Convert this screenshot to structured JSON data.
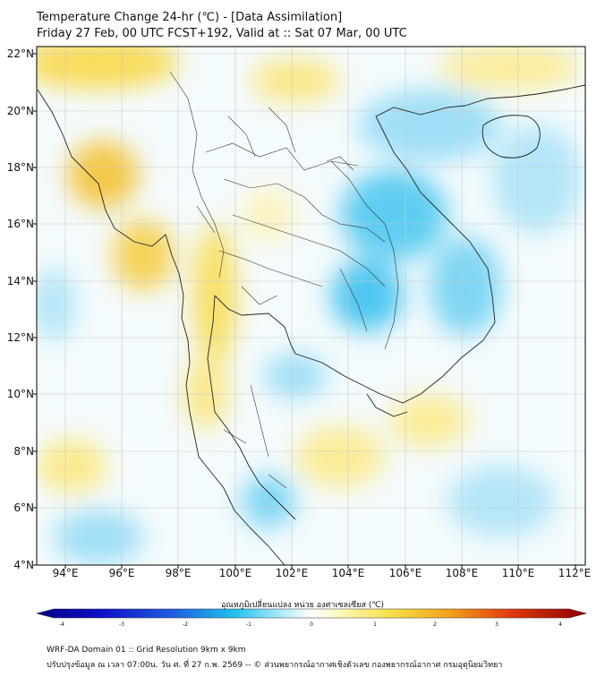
{
  "title": {
    "line1": "Temperature Change 24-hr (℃) - [Data Assimilation]",
    "line2": "Friday 27 Feb, 00 UTC FCST+192, Valid at :: Sat 07 Mar, 00 UTC"
  },
  "axes": {
    "lat_labels": [
      "22°N",
      "20°N",
      "18°N",
      "16°N",
      "14°N",
      "12°N",
      "10°N",
      "8°N",
      "6°N",
      "4°N"
    ],
    "lon_labels": [
      "94°E",
      "96°E",
      "98°E",
      "100°E",
      "102°E",
      "104°E",
      "106°E",
      "108°E",
      "110°E",
      "112°E"
    ]
  },
  "colorbar": {
    "label": "อุณหภูมิเปลี่ยนแปลง หน่วย องศาเซลเซียส (℃)",
    "ticks": [
      "-4",
      "-3",
      "-2",
      "-1",
      "0",
      "1",
      "2",
      "3",
      "4"
    ],
    "colors": {
      "cold": "#00008b",
      "cool": "#1fc2ee",
      "neutral": "#ffffff",
      "warm": "#f7e24a",
      "hot": "#8b0000"
    }
  },
  "footer": {
    "line1": "WRF-DA Domain 01 :: Grid Resolution 9km x 9km",
    "line2": "ปรับปรุงข้อมูล ณ เวลา 07:00น. วัน ศ. ที่ 27 ก.พ. 2569 -- © ส่วนพยากรณ์อากาศเชิงตัวเลข กองพยากรณ์อากาศ กรมอุตุนิยมวิทยา"
  }
}
